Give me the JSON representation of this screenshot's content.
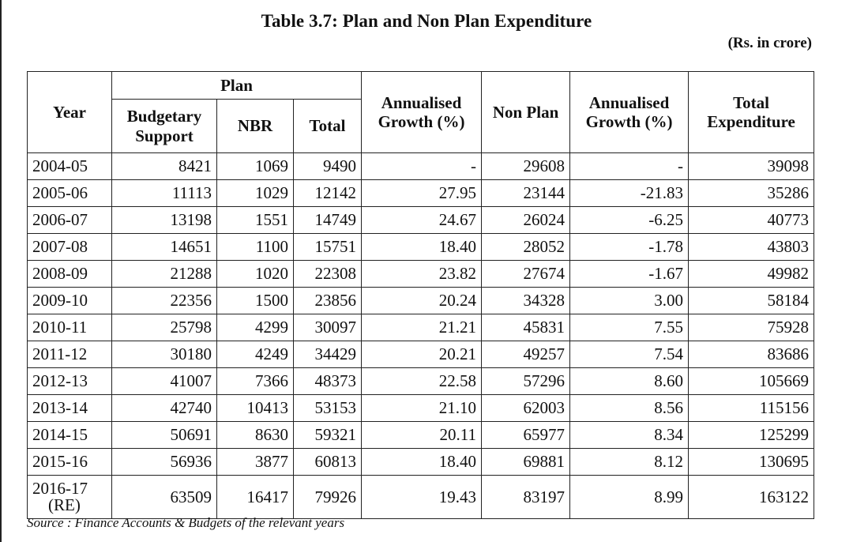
{
  "title": "Table 3.7: Plan and Non Plan Expenditure",
  "unit_note": "(Rs. in crore)",
  "headers": {
    "year": "Year",
    "plan_group": "Plan",
    "budgetary_support": "Budgetary Support",
    "nbr": "NBR",
    "plan_total": "Total",
    "annualised_growth_plan": "Annualised Growth (%)",
    "non_plan": "Non Plan",
    "annualised_growth_non_plan": "Annualised Growth (%)",
    "total_expenditure": "Total Expenditure"
  },
  "rows": [
    [
      "2004-05",
      "8421",
      "1069",
      "9490",
      "-",
      "29608",
      "-",
      "39098"
    ],
    [
      "2005-06",
      "11113",
      "1029",
      "12142",
      "27.95",
      "23144",
      "-21.83",
      "35286"
    ],
    [
      "2006-07",
      "13198",
      "1551",
      "14749",
      "24.67",
      "26024",
      "-6.25",
      "40773"
    ],
    [
      "2007-08",
      "14651",
      "1100",
      "15751",
      "18.40",
      "28052",
      "-1.78",
      "43803"
    ],
    [
      "2008-09",
      "21288",
      "1020",
      "22308",
      "23.82",
      "27674",
      "-1.67",
      "49982"
    ],
    [
      "2009-10",
      "22356",
      "1500",
      "23856",
      "20.24",
      "34328",
      "3.00",
      "58184"
    ],
    [
      "2010-11",
      "25798",
      "4299",
      "30097",
      "21.21",
      "45831",
      "7.55",
      "75928"
    ],
    [
      "2011-12",
      "30180",
      "4249",
      "34429",
      "20.21",
      "49257",
      "7.54",
      "83686"
    ],
    [
      "2012-13",
      "41007",
      "7366",
      "48373",
      "22.58",
      "57296",
      "8.60",
      "105669"
    ],
    [
      "2013-14",
      "42740",
      "10413",
      "53153",
      "21.10",
      "62003",
      "8.56",
      "115156"
    ],
    [
      "2014-15",
      "50691",
      "8630",
      "59321",
      "20.11",
      "65977",
      "8.34",
      "125299"
    ],
    [
      "2015-16",
      "56936",
      "3877",
      "60813",
      "18.40",
      "69881",
      "8.12",
      "130695"
    ]
  ],
  "last_row": {
    "year_line1": "2016-17",
    "year_line2": "(RE)",
    "values": [
      "63509",
      "16417",
      "79926",
      "19.43",
      "83197",
      "8.99",
      "163122"
    ]
  },
  "source": "Source : Finance Accounts & Budgets of the relevant years"
}
